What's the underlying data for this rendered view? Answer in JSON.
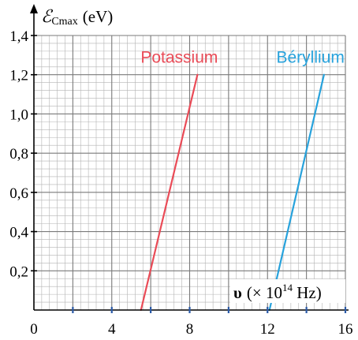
{
  "chart_data": {
    "type": "line",
    "title": "",
    "ylabel": {
      "symbol": "ℰ",
      "subscript": "Cmax",
      "unit": "(eV)"
    },
    "xlabel": {
      "symbol": "υ",
      "prefix": "(× 10",
      "exponent": "14",
      "suffix": " Hz)"
    },
    "xlim": [
      0,
      16
    ],
    "ylim": [
      0,
      1.4
    ],
    "x_ticks": [
      0,
      4,
      8,
      12,
      16
    ],
    "x_tick_labels": [
      "0",
      "4",
      "8",
      "12",
      "16"
    ],
    "x_minor_ticks": [
      2,
      6,
      10,
      14
    ],
    "y_ticks": [
      0.2,
      0.4,
      0.6,
      0.8,
      1.0,
      1.2,
      1.4
    ],
    "y_tick_labels": [
      "0,2",
      "0,4",
      "0,6",
      "0,8",
      "1,0",
      "1,2",
      "1,4"
    ],
    "grid": true,
    "series": [
      {
        "name": "Potassium",
        "color": "#ea4b57",
        "x": [
          5.5,
          8.4
        ],
        "y": [
          0.0,
          1.2
        ]
      },
      {
        "name": "Béryllium",
        "color": "#27a2dc",
        "x": [
          12.1,
          14.9
        ],
        "y": [
          0.0,
          1.2
        ]
      }
    ],
    "colors": {
      "grid_major": "#7a7a7a",
      "grid_minor": "#b3b3b3",
      "axis": "#000000",
      "x_tick_marks": "#2a5aa8"
    }
  }
}
